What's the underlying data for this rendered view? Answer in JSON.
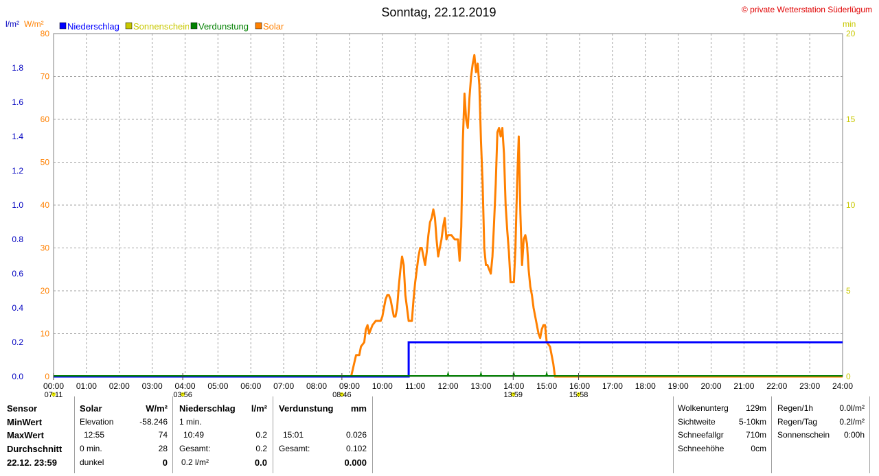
{
  "header": {
    "title": "Sonntag, 22.12.2019",
    "copyright": "© private Wetterstation Süderlügum",
    "left_unit_1": "l/m²",
    "left_unit_2": "W/m²",
    "right_unit": "min"
  },
  "legend": [
    {
      "label": "Niederschlag",
      "color": "#0000ff"
    },
    {
      "label": "Sonnenschein",
      "color": "#c8c800"
    },
    {
      "label": "Verdunstung",
      "color": "#008000"
    },
    {
      "label": "Solar",
      "color": "#ff8000"
    }
  ],
  "chart_data": {
    "type": "line",
    "title": "Sonntag, 22.12.2019",
    "x_ticks": [
      "00:00",
      "01:00",
      "02:00",
      "03:00",
      "04:00",
      "05:00",
      "06:00",
      "07:00",
      "08:00",
      "09:00",
      "10:00",
      "11:00",
      "12:00",
      "13:00",
      "14:00",
      "15:00",
      "16:00",
      "17:00",
      "18:00",
      "19:00",
      "20:00",
      "21:00",
      "22:00",
      "23:00",
      "24:00"
    ],
    "y_left_solar_ticks": [
      "0",
      "10",
      "20",
      "30",
      "40",
      "50",
      "60",
      "70",
      "80"
    ],
    "y_left_precip_ticks": [
      "0.0",
      "0.2",
      "0.4",
      "0.6",
      "0.8",
      "1.0",
      "1.2",
      "1.4",
      "1.6",
      "1.8"
    ],
    "y_right_ticks": [
      "0",
      "5",
      "10",
      "15",
      "20"
    ],
    "ylim_solar": [
      0,
      80
    ],
    "ylim_precip": [
      0,
      2.0
    ],
    "ylim_sunshine": [
      0,
      20
    ],
    "xlim_hours": [
      0,
      24
    ],
    "grid": true,
    "time_markers": [
      {
        "label": "07:11",
        "hour": 0.0
      },
      {
        "label": "03:56",
        "hour": 3.93
      },
      {
        "label": "08:46",
        "hour": 8.77
      },
      {
        "label": "13:59",
        "hour": 13.98
      },
      {
        "label": "15:58",
        "hour": 15.97
      }
    ],
    "series": [
      {
        "name": "Solar",
        "axis": "W/m²",
        "color": "#ff8000",
        "x": [
          0,
          9.0,
          9.05,
          9.2,
          9.3,
          9.35,
          9.45,
          9.5,
          9.55,
          9.6,
          9.7,
          9.8,
          9.9,
          9.95,
          10.0,
          10.05,
          10.1,
          10.15,
          10.2,
          10.25,
          10.3,
          10.35,
          10.4,
          10.45,
          10.5,
          10.55,
          10.6,
          10.65,
          10.7,
          10.75,
          10.8,
          10.9,
          10.95,
          11.0,
          11.05,
          11.1,
          11.15,
          11.2,
          11.25,
          11.3,
          11.35,
          11.4,
          11.45,
          11.5,
          11.55,
          11.6,
          11.65,
          11.7,
          11.75,
          11.8,
          11.85,
          11.9,
          11.95,
          12.0,
          12.1,
          12.2,
          12.3,
          12.35,
          12.4,
          12.45,
          12.5,
          12.55,
          12.6,
          12.65,
          12.7,
          12.75,
          12.8,
          12.85,
          12.9,
          12.95,
          13.0,
          13.05,
          13.1,
          13.15,
          13.2,
          13.25,
          13.3,
          13.35,
          13.4,
          13.45,
          13.5,
          13.55,
          13.6,
          13.65,
          13.7,
          13.75,
          13.8,
          13.85,
          13.9,
          13.95,
          14.0,
          14.05,
          14.1,
          14.15,
          14.2,
          14.25,
          14.3,
          14.35,
          14.4,
          14.45,
          14.5,
          14.55,
          14.6,
          14.65,
          14.7,
          14.75,
          14.8,
          14.85,
          14.9,
          14.95,
          15.0,
          15.1,
          15.15,
          15.2,
          15.25,
          15.3,
          15.35,
          15.4,
          15.45,
          15.5,
          15.55,
          15.6,
          15.65,
          15.7,
          15.75,
          15.8,
          15.82,
          24
        ],
        "values": [
          0,
          0,
          0,
          5,
          5,
          7,
          8,
          11,
          12,
          10,
          12,
          13,
          13,
          13,
          14,
          16,
          18,
          19,
          19,
          18,
          16,
          14,
          14,
          16,
          21,
          25,
          28,
          26,
          19,
          16,
          13,
          13,
          18,
          22,
          25,
          28,
          30,
          30,
          28,
          26,
          29,
          33,
          36,
          37,
          39,
          37,
          32,
          28,
          30,
          32,
          35,
          37,
          32,
          33,
          33,
          32,
          32,
          27,
          35,
          55,
          66,
          60,
          58,
          65,
          70,
          73,
          75,
          71,
          73,
          68,
          55,
          45,
          30,
          26,
          26,
          25,
          24,
          28,
          36,
          45,
          57,
          58,
          56,
          58,
          52,
          40,
          34,
          29,
          22,
          22,
          22,
          30,
          45,
          56,
          38,
          26,
          32,
          33,
          31,
          25,
          21,
          19,
          16,
          14,
          12,
          10,
          9,
          11,
          12,
          12,
          8,
          7,
          5,
          3,
          0,
          0,
          0,
          0,
          0,
          0,
          0,
          0,
          0,
          0,
          0,
          0,
          0,
          0
        ]
      },
      {
        "name": "Niederschlag",
        "axis": "l/m²",
        "color": "#0000ff",
        "x": [
          0,
          10.8,
          10.8,
          24
        ],
        "values": [
          0,
          0,
          0.2,
          0.2
        ]
      },
      {
        "name": "Verdunstung",
        "axis": "mm",
        "color": "#008000",
        "x": [
          12.0,
          13.0,
          14.0,
          15.0
        ],
        "values": [
          0.026,
          0.026,
          0.025,
          0.025
        ]
      },
      {
        "name": "Sonnenschein",
        "axis": "min",
        "color": "#c8c800",
        "x": [],
        "values": []
      }
    ]
  },
  "summary": {
    "labels": {
      "sensor": "Sensor",
      "min": "MinWert",
      "max": "MaxWert",
      "avg": "Durchschnitt",
      "date": "22.12. 23:59"
    },
    "solar": {
      "title": "Solar",
      "unit": "W/m²",
      "r1_label": "Elevation",
      "r1_value": "-58.246",
      "r2_label": "12:55",
      "r2_value": "74",
      "r3_label": "0 min.",
      "r3_value": "28",
      "r4_label": "dunkel",
      "r4_value": "0"
    },
    "precip": {
      "title": "Niederschlag",
      "unit": "l/m²",
      "r1_label": "1 min.",
      "r2_label": "10:49",
      "r2_value": "0.2",
      "r3_label": "Gesamt:",
      "r3_value": "0.2",
      "r4_label": "0.2 l/m²",
      "r4_value": "0.0"
    },
    "evap": {
      "title": "Verdunstung",
      "unit": "mm",
      "r2_label": "15:01",
      "r2_value": "0.026",
      "r3_label": "Gesamt:",
      "r3_value": "0.102",
      "r4_value": "0.000"
    },
    "weather": [
      {
        "label": "Wolkenunterg",
        "value": "129m"
      },
      {
        "label": "Sichtweite",
        "value": "5-10km"
      },
      {
        "label": "Schneefallgr",
        "value": "710m"
      },
      {
        "label": "Schneehöhe",
        "value": "0cm"
      }
    ],
    "rain": [
      {
        "label": "Regen/1h",
        "value": "0.0l/m²"
      },
      {
        "label": "Regen/Tag",
        "value": "0.2l/m²"
      },
      {
        "label": "Sonnenschein",
        "value": "0:00h"
      }
    ]
  }
}
